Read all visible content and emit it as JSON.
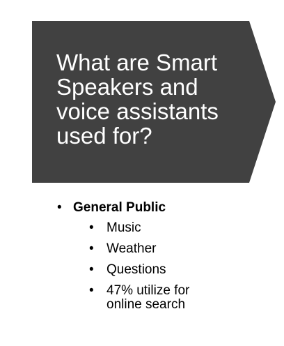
{
  "banner": {
    "title": "What are Smart Speakers and voice assistants used for?"
  },
  "list": {
    "bullet_glyph": "•",
    "heading": "General Public",
    "items": [
      "Music",
      "Weather",
      "Questions",
      "47% utilize for online search"
    ]
  },
  "colors": {
    "banner_background": "#414141",
    "banner_text": "#ffffff",
    "body_text": "#000000"
  }
}
